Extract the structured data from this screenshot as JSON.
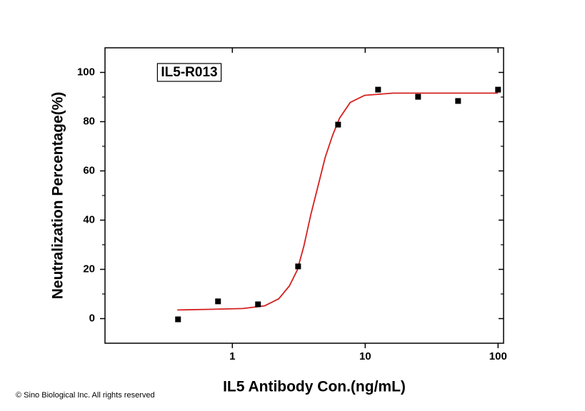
{
  "chart_data": {
    "type": "scatter",
    "annotation": "IL5-R013",
    "xlabel": "IL5 Antibody Con.(ng/mL)",
    "ylabel": "Neutralization Percentage(%)",
    "footer": "© Sino Biological Inc. All rights reserved",
    "xscale": "log",
    "xlim": [
      0.11,
      110
    ],
    "xticks": [
      1,
      10,
      100
    ],
    "ylim": [
      -10,
      110
    ],
    "yticks": [
      0,
      20,
      40,
      60,
      80,
      100
    ],
    "yminorticks": [
      10,
      30,
      50,
      70,
      90
    ],
    "series": [
      {
        "kind": "scatter",
        "color": "#000000",
        "x": [
          0.39,
          0.78,
          1.56,
          3.125,
          6.25,
          12.5,
          25,
          50,
          100
        ],
        "values": [
          -0.3,
          7,
          5.8,
          21.2,
          78.8,
          93,
          90.1,
          88.4,
          93
        ]
      },
      {
        "kind": "line",
        "color": "#d42020",
        "x": [
          0.385,
          0.73,
          1.2,
          1.75,
          2.24,
          2.69,
          3.08,
          3.45,
          3.9,
          4.42,
          5.0,
          5.66,
          6.4,
          7.71,
          9.9,
          16.2,
          100
        ],
        "values": [
          3.5,
          3.8,
          4.1,
          5.2,
          8.1,
          13.3,
          19.7,
          29.3,
          42.3,
          53.9,
          65.5,
          74.2,
          81.4,
          87.8,
          90.7,
          91.6,
          91.6
        ]
      }
    ]
  }
}
